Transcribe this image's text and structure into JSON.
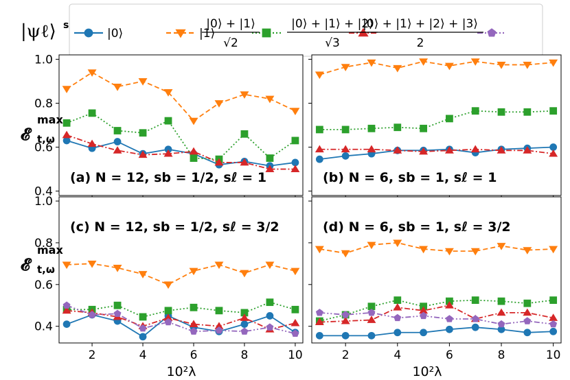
{
  "legend": {
    "symbol": "|ψℓ⟩",
    "symbol_sup": "sℓ",
    "entries": [
      {
        "label": "|0⟩",
        "color": "#1f77b4",
        "marker": "circle",
        "dash": "solid"
      },
      {
        "label": "|1⟩",
        "color": "#ff7f0e",
        "marker": "triangle-down",
        "dash": "dashed"
      },
      {
        "numerator": "|0⟩ + |1⟩",
        "denominator": "√2",
        "color": "#2ca02c",
        "marker": "square",
        "dash": "dotted"
      },
      {
        "numerator": "|0⟩ + |1⟩ + |2⟩",
        "denominator": "√3",
        "color": "#d62728",
        "marker": "triangle-up",
        "dash": "dashdot"
      },
      {
        "numerator": "|0⟩ + |1⟩ + |2⟩ + |3⟩",
        "denominator": "2",
        "color": "#9467bd",
        "marker": "pentagon",
        "dash": "dashdotdot"
      }
    ]
  },
  "axes": {
    "ylabel_main": "𝓔",
    "ylabel_sup": "max",
    "ylabel_sub": "t,ω",
    "xlabel": "10²λ",
    "xticks": [
      "2",
      "4",
      "6",
      "8",
      "10"
    ],
    "yticks_top": [
      "0.4",
      "0.6",
      "0.8",
      "1.0"
    ],
    "yticks_bottom": [
      "0.4",
      "0.6",
      "0.8",
      "1.0"
    ]
  },
  "chart_data": [
    {
      "type": "line",
      "panel": "a",
      "annotation": "(a) N = 12,  sb = 1/2,  sℓ = 1",
      "x": [
        1,
        2,
        3,
        4,
        5,
        6,
        7,
        8,
        9,
        10
      ],
      "xlim": [
        0.7,
        10.3
      ],
      "ylim": [
        0.38,
        1.02
      ],
      "xlabel": "",
      "ylabel": "𝓔 t,ω max",
      "series": [
        {
          "name": "|0⟩",
          "values": [
            0.63,
            0.595,
            0.625,
            0.57,
            0.59,
            0.57,
            0.52,
            0.535,
            0.515,
            0.53
          ]
        },
        {
          "name": "|1⟩",
          "values": [
            0.865,
            0.94,
            0.875,
            0.9,
            0.85,
            0.72,
            0.8,
            0.84,
            0.82,
            0.765
          ]
        },
        {
          "name": "(|0⟩+|1⟩)/√2",
          "values": [
            0.71,
            0.755,
            0.675,
            0.665,
            0.72,
            0.55,
            0.545,
            0.66,
            0.55,
            0.63
          ]
        },
        {
          "name": "(|0⟩+|1⟩+|2⟩)/√3",
          "values": [
            0.655,
            0.615,
            0.585,
            0.565,
            0.57,
            0.58,
            0.53,
            0.53,
            0.5,
            0.5
          ]
        }
      ]
    },
    {
      "type": "line",
      "panel": "b",
      "annotation": "(b) N = 6,  sb = 1,  sℓ = 1",
      "x": [
        1,
        2,
        3,
        4,
        5,
        6,
        7,
        8,
        9,
        10
      ],
      "xlim": [
        0.7,
        10.3
      ],
      "ylim": [
        0.38,
        1.02
      ],
      "xlabel": "",
      "ylabel": "",
      "series": [
        {
          "name": "|0⟩",
          "values": [
            0.545,
            0.56,
            0.57,
            0.585,
            0.585,
            0.59,
            0.575,
            0.59,
            0.595,
            0.6
          ]
        },
        {
          "name": "|1⟩",
          "values": [
            0.93,
            0.965,
            0.985,
            0.96,
            0.99,
            0.97,
            0.99,
            0.975,
            0.975,
            0.985
          ]
        },
        {
          "name": "(|0⟩+|1⟩)/√2",
          "values": [
            0.68,
            0.68,
            0.685,
            0.69,
            0.685,
            0.73,
            0.765,
            0.76,
            0.76,
            0.765
          ]
        },
        {
          "name": "(|0⟩+|1⟩+|2⟩)/√3",
          "values": [
            0.59,
            0.59,
            0.59,
            0.585,
            0.58,
            0.585,
            0.59,
            0.585,
            0.585,
            0.57
          ]
        }
      ]
    },
    {
      "type": "line",
      "panel": "c",
      "annotation": "(c) N = 12,  sb = 1/2,  sℓ = 3/2",
      "x": [
        1,
        2,
        3,
        4,
        5,
        6,
        7,
        8,
        9,
        10
      ],
      "xlim": [
        0.7,
        10.3
      ],
      "ylim": [
        0.32,
        1.02
      ],
      "xlabel": "10²λ",
      "ylabel": "𝓔 t,ω max",
      "series": [
        {
          "name": "|0⟩",
          "values": [
            0.41,
            0.455,
            0.425,
            0.35,
            0.45,
            0.395,
            0.375,
            0.41,
            0.45,
            0.37
          ]
        },
        {
          "name": "|1⟩",
          "values": [
            0.695,
            0.7,
            0.68,
            0.65,
            0.6,
            0.665,
            0.695,
            0.655,
            0.695,
            0.665
          ]
        },
        {
          "name": "(|0⟩+|1⟩)/√2",
          "values": [
            0.48,
            0.48,
            0.5,
            0.445,
            0.475,
            0.49,
            0.475,
            0.465,
            0.515,
            0.48
          ]
        },
        {
          "name": "(|0⟩+|1⟩+|2⟩)/√3",
          "values": [
            0.475,
            0.465,
            0.445,
            0.4,
            0.44,
            0.41,
            0.4,
            0.44,
            0.385,
            0.415
          ]
        },
        {
          "name": "(|0⟩+|1⟩+|2⟩+|3⟩)/2",
          "values": [
            0.5,
            0.455,
            0.46,
            0.39,
            0.42,
            0.375,
            0.38,
            0.375,
            0.395,
            0.365
          ]
        }
      ]
    },
    {
      "type": "line",
      "panel": "d",
      "annotation": "(d) N = 6,  sb = 1,  sℓ = 3/2",
      "x": [
        1,
        2,
        3,
        4,
        5,
        6,
        7,
        8,
        9,
        10
      ],
      "xlim": [
        0.7,
        10.3
      ],
      "ylim": [
        0.32,
        1.02
      ],
      "xlabel": "10²λ",
      "ylabel": "",
      "series": [
        {
          "name": "|0⟩",
          "values": [
            0.355,
            0.355,
            0.355,
            0.37,
            0.37,
            0.385,
            0.395,
            0.385,
            0.37,
            0.375
          ]
        },
        {
          "name": "|1⟩",
          "values": [
            0.77,
            0.75,
            0.79,
            0.8,
            0.77,
            0.76,
            0.76,
            0.785,
            0.765,
            0.77
          ]
        },
        {
          "name": "(|0⟩+|1⟩)/√2",
          "values": [
            0.425,
            0.455,
            0.495,
            0.525,
            0.495,
            0.52,
            0.525,
            0.52,
            0.51,
            0.525
          ]
        },
        {
          "name": "(|0⟩+|1⟩+|2⟩)/√3",
          "values": [
            0.42,
            0.425,
            0.43,
            0.49,
            0.475,
            0.5,
            0.435,
            0.465,
            0.465,
            0.44
          ]
        },
        {
          "name": "(|0⟩+|1⟩+|2⟩+|3⟩)/2",
          "values": [
            0.465,
            0.455,
            0.465,
            0.44,
            0.45,
            0.435,
            0.435,
            0.41,
            0.425,
            0.41
          ]
        }
      ]
    }
  ]
}
